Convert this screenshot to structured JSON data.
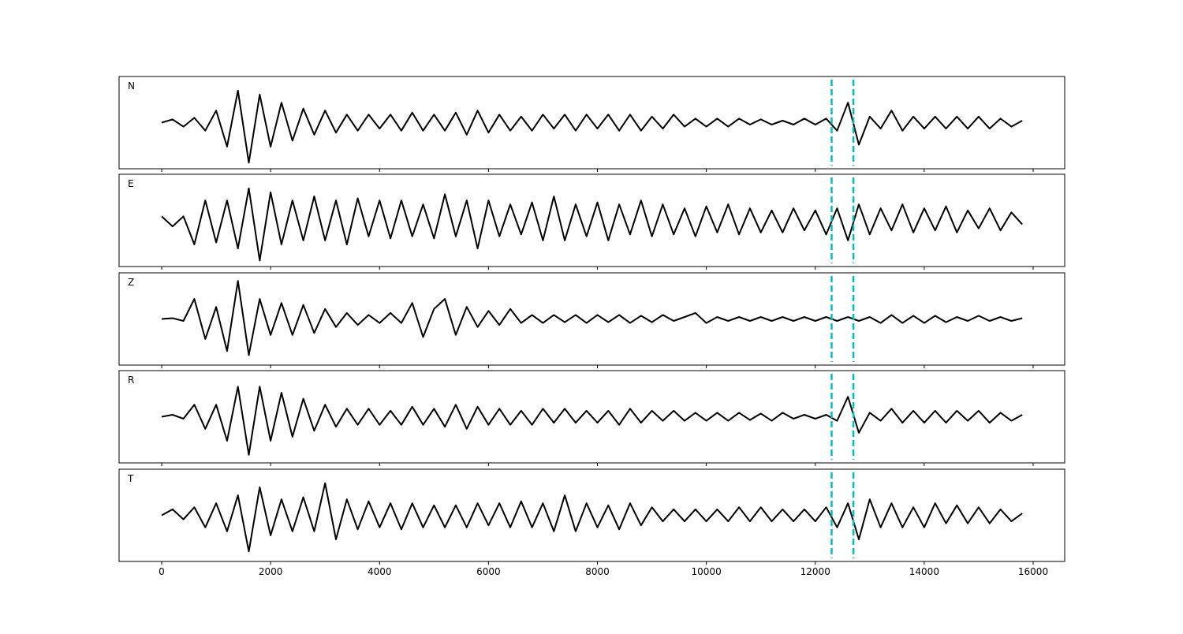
{
  "chart_data": {
    "type": "line",
    "x": [
      0,
      200,
      400,
      600,
      800,
      1000,
      1200,
      1400,
      1600,
      1800,
      2000,
      2200,
      2400,
      2600,
      2800,
      3000,
      3200,
      3400,
      3600,
      3800,
      4000,
      4200,
      4400,
      4600,
      4800,
      5000,
      5200,
      5400,
      5600,
      5800,
      6000,
      6200,
      6400,
      6600,
      6800,
      7000,
      7200,
      7400,
      7600,
      7800,
      8000,
      8200,
      8400,
      8600,
      8800,
      9000,
      9200,
      9400,
      9600,
      9800,
      10000,
      10200,
      10400,
      10600,
      10800,
      11000,
      11200,
      11400,
      11600,
      11800,
      12000,
      12200,
      12400,
      12600,
      12800,
      13000,
      13200,
      13400,
      13600,
      13800,
      14000,
      14200,
      14400,
      14600,
      14800,
      15000,
      15200,
      15400,
      15600,
      15800
    ],
    "xlim": [
      -782,
      16579
    ],
    "xticks": [
      0,
      2000,
      4000,
      6000,
      8000,
      10000,
      12000,
      14000,
      16000
    ],
    "ylim": [
      -1.15,
      1.15
    ],
    "series": [
      {
        "name": "N",
        "color": "#000000",
        "values": [
          0,
          0.08,
          -0.1,
          0.12,
          -0.2,
          0.3,
          -0.6,
          0.8,
          -1.0,
          0.7,
          -0.6,
          0.5,
          -0.45,
          0.35,
          -0.3,
          0.3,
          -0.25,
          0.2,
          -0.2,
          0.2,
          -0.15,
          0.2,
          -0.2,
          0.25,
          -0.2,
          0.2,
          -0.2,
          0.25,
          -0.3,
          0.3,
          -0.25,
          0.2,
          -0.2,
          0.15,
          -0.2,
          0.2,
          -0.15,
          0.2,
          -0.2,
          0.2,
          -0.15,
          0.2,
          -0.2,
          0.2,
          -0.2,
          0.15,
          -0.15,
          0.2,
          -0.1,
          0.1,
          -0.1,
          0.1,
          -0.1,
          0.1,
          -0.05,
          0.08,
          -0.05,
          0.05,
          -0.05,
          0.1,
          -0.05,
          0.1,
          -0.2,
          0.5,
          -0.55,
          0.15,
          -0.15,
          0.3,
          -0.2,
          0.15,
          -0.15,
          0.15,
          -0.15,
          0.15,
          -0.15,
          0.15,
          -0.15,
          0.1,
          -0.1,
          0.05
        ]
      },
      {
        "name": "E",
        "color": "#000000",
        "values": [
          0.1,
          -0.15,
          0.1,
          -0.6,
          0.5,
          -0.55,
          0.5,
          -0.7,
          0.8,
          -1.0,
          0.7,
          -0.6,
          0.5,
          -0.5,
          0.6,
          -0.5,
          0.5,
          -0.6,
          0.55,
          -0.4,
          0.5,
          -0.45,
          0.5,
          -0.4,
          0.4,
          -0.45,
          0.65,
          -0.4,
          0.5,
          -0.7,
          0.5,
          -0.4,
          0.4,
          -0.35,
          0.45,
          -0.5,
          0.6,
          -0.5,
          0.4,
          -0.4,
          0.45,
          -0.5,
          0.4,
          -0.35,
          0.5,
          -0.4,
          0.4,
          -0.35,
          0.3,
          -0.4,
          0.35,
          -0.3,
          0.4,
          -0.35,
          0.3,
          -0.3,
          0.25,
          -0.3,
          0.3,
          -0.25,
          0.25,
          -0.35,
          0.3,
          -0.5,
          0.4,
          -0.35,
          0.3,
          -0.25,
          0.4,
          -0.3,
          0.3,
          -0.25,
          0.35,
          -0.3,
          0.25,
          -0.2,
          0.3,
          -0.25,
          0.2,
          -0.1
        ]
      },
      {
        "name": "Z",
        "color": "#000000",
        "values": [
          0,
          0.02,
          -0.05,
          0.5,
          -0.5,
          0.3,
          -0.8,
          0.95,
          -0.9,
          0.5,
          -0.4,
          0.4,
          -0.4,
          0.35,
          -0.35,
          0.25,
          -0.2,
          0.15,
          -0.15,
          0.1,
          -0.1,
          0.15,
          -0.1,
          0.4,
          -0.45,
          0.25,
          0.5,
          -0.4,
          0.3,
          -0.2,
          0.2,
          -0.15,
          0.25,
          -0.1,
          0.1,
          -0.1,
          0.1,
          -0.08,
          0.1,
          -0.1,
          0.1,
          -0.08,
          0.1,
          -0.1,
          0.08,
          -0.08,
          0.1,
          -0.05,
          0.05,
          0.15,
          -0.1,
          0.05,
          -0.05,
          0.05,
          -0.05,
          0.05,
          -0.05,
          0.05,
          -0.05,
          0.05,
          -0.05,
          0.05,
          -0.05,
          0.05,
          -0.05,
          0.05,
          -0.1,
          0.1,
          -0.1,
          0.08,
          -0.1,
          0.08,
          -0.08,
          0.05,
          -0.05,
          0.08,
          -0.05,
          0.05,
          -0.05,
          0.02
        ]
      },
      {
        "name": "R",
        "color": "#000000",
        "values": [
          0,
          0.05,
          -0.05,
          0.3,
          -0.3,
          0.3,
          -0.6,
          0.75,
          -0.95,
          0.75,
          -0.6,
          0.6,
          -0.5,
          0.45,
          -0.35,
          0.3,
          -0.25,
          0.2,
          -0.2,
          0.2,
          -0.2,
          0.15,
          -0.2,
          0.25,
          -0.2,
          0.2,
          -0.25,
          0.3,
          -0.3,
          0.25,
          -0.2,
          0.2,
          -0.2,
          0.15,
          -0.2,
          0.2,
          -0.15,
          0.2,
          -0.15,
          0.15,
          -0.15,
          0.15,
          -0.2,
          0.2,
          -0.15,
          0.15,
          -0.1,
          0.15,
          -0.1,
          0.1,
          -0.1,
          0.1,
          -0.1,
          0.1,
          -0.08,
          0.08,
          -0.1,
          0.1,
          -0.05,
          0.05,
          -0.05,
          0.05,
          -0.1,
          0.5,
          -0.4,
          0.1,
          -0.1,
          0.2,
          -0.15,
          0.15,
          -0.15,
          0.15,
          -0.15,
          0.15,
          -0.1,
          0.15,
          -0.15,
          0.1,
          -0.1,
          0.05
        ]
      },
      {
        "name": "T",
        "color": "#000000",
        "values": [
          0,
          0.15,
          -0.1,
          0.2,
          -0.3,
          0.3,
          -0.4,
          0.5,
          -0.9,
          0.7,
          -0.5,
          0.4,
          -0.4,
          0.45,
          -0.4,
          0.8,
          -0.6,
          0.4,
          -0.35,
          0.35,
          -0.3,
          0.3,
          -0.35,
          0.3,
          -0.3,
          0.25,
          -0.3,
          0.25,
          -0.3,
          0.3,
          -0.25,
          0.3,
          -0.3,
          0.35,
          -0.3,
          0.3,
          -0.4,
          0.5,
          -0.4,
          0.3,
          -0.3,
          0.25,
          -0.35,
          0.3,
          -0.25,
          0.2,
          -0.15,
          0.15,
          -0.15,
          0.15,
          -0.15,
          0.15,
          -0.15,
          0.2,
          -0.15,
          0.2,
          -0.15,
          0.15,
          -0.15,
          0.15,
          -0.15,
          0.2,
          -0.3,
          0.3,
          -0.6,
          0.4,
          -0.3,
          0.3,
          -0.3,
          0.2,
          -0.3,
          0.3,
          -0.2,
          0.25,
          -0.2,
          0.2,
          -0.2,
          0.15,
          -0.15,
          0.05
        ]
      }
    ],
    "markers": {
      "x": [
        12300,
        12700
      ],
      "color": "#00bfbf",
      "style": "dashed"
    }
  }
}
